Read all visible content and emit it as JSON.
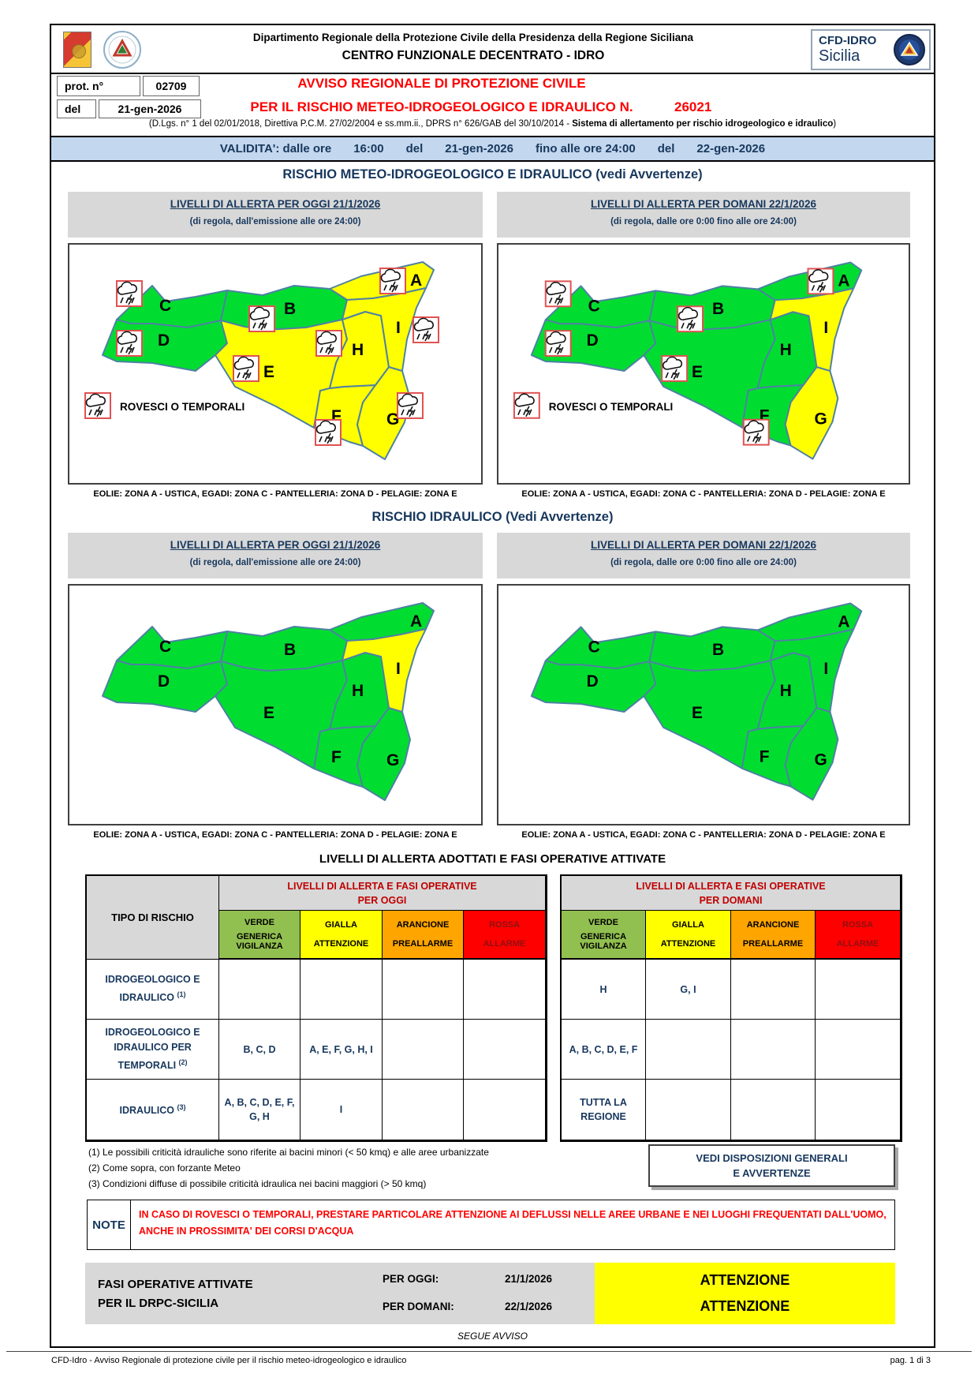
{
  "header": {
    "line1": "Dipartimento Regionale della Protezione Civile della Presidenza della Regione Siciliana",
    "line2": "CENTRO FUNZIONALE DECENTRATO - IDRO",
    "badge": {
      "line1": "CFD-IDRO",
      "line2": "Sicilia"
    }
  },
  "protocol": {
    "prot_label": "prot. n°",
    "prot_value": "02709",
    "del_label": "del",
    "del_value": "21-gen-2026"
  },
  "title": {
    "line1": "AVVISO REGIONALE DI PROTEZIONE CIVILE",
    "line2": "PER IL RISCHIO METEO-IDROGEOLOGICO E IDRAULICO N.",
    "number": "26021",
    "subtitle_pre": "(D.Lgs. n° 1 del 02/01/2018, Direttiva P.C.M. 27/02/2004 e ss.mm.ii., DPRS n° 626/GAB del 30/10/2014 - ",
    "subtitle_bold": "Sistema di allertamento per rischio idrogeologico e idraulico",
    "subtitle_post": ")"
  },
  "validity": {
    "p1": "VALIDITA': dalle ore",
    "p2": "16:00",
    "p3": "del",
    "p4": "21-gen-2026",
    "p5": "fino alle ore 24:00",
    "p6": "del",
    "p7": "22-gen-2026"
  },
  "sections": {
    "meteo_title": "RISCHIO METEO-IDROGEOLOGICO E IDRAULICO (vedi Avvertenze)",
    "idraulico_title": "RISCHIO IDRAULICO (Vedi Avvertenze)"
  },
  "map_headers": {
    "today_title": "LIVELLI DI ALLERTA PER OGGI 21/1/2026",
    "today_sub": "(di regola, dall'emissione alle ore 24:00)",
    "tomorrow_title": "LIVELLI DI ALLERTA PER DOMANI 22/1/2026",
    "tomorrow_sub": "(di regola, dalle ore 0:00 fino alle ore 24:00)"
  },
  "map_caption": "EOLIE: ZONA A - USTICA, EGADI: ZONA C - PANTELLERIA: ZONA D - PELAGIE: ZONA E",
  "legend_label": "ROVESCI O TEMPORALI",
  "colors": {
    "map_green": "#00dd30",
    "map_yellow": "#ffff00",
    "verde": "#92c050",
    "gialla": "#ffff00",
    "arancione": "#ffa500",
    "rossa": "#ff0000",
    "navy": "#17375d",
    "title_red": "#ff0000",
    "table_head_red": "#c00000",
    "validity_bg": "#c3d7ee"
  },
  "maps": {
    "meteo_today": {
      "zones": {
        "A": "yellow",
        "B": "green",
        "C": "green",
        "D": "green",
        "E": "yellow",
        "F": "yellow",
        "G": "yellow",
        "H": "yellow",
        "I": "yellow"
      },
      "icons": [
        "A",
        "B",
        "C",
        "D",
        "E",
        "F",
        "G",
        "H",
        "I"
      ],
      "legend": true
    },
    "meteo_tomorrow": {
      "zones": {
        "A": "green",
        "B": "green",
        "C": "green",
        "D": "green",
        "E": "green",
        "F": "green",
        "G": "yellow",
        "H": "green",
        "I": "yellow"
      },
      "icons": [
        "A",
        "B",
        "C",
        "D",
        "E",
        "F"
      ],
      "legend": true
    },
    "idro_today": {
      "zones": {
        "A": "green",
        "B": "green",
        "C": "green",
        "D": "green",
        "E": "green",
        "F": "green",
        "G": "green",
        "H": "green",
        "I": "yellow"
      },
      "icons": [],
      "legend": false
    },
    "idro_tomorrow": {
      "zones": {
        "A": "green",
        "B": "green",
        "C": "green",
        "D": "green",
        "E": "green",
        "F": "green",
        "G": "green",
        "H": "green",
        "I": "green"
      },
      "icons": [],
      "legend": false
    }
  },
  "alert_table": {
    "title": "LIVELLI DI ALLERTA ADOTTATI E FASI OPERATIVE ATTIVATE",
    "tipo_header": "TIPO DI RISCHIO",
    "today_header_l1": "LIVELLI DI ALLERTA E FASI OPERATIVE",
    "today_header_l2": "PER OGGI",
    "tomorrow_header_l1": "LIVELLI DI ALLERTA E FASI OPERATIVE",
    "tomorrow_header_l2": "PER DOMANI",
    "levels": [
      {
        "name": "VERDE",
        "phase": "GENERICA VIGILANZA"
      },
      {
        "name": "GIALLA",
        "phase": "ATTENZIONE"
      },
      {
        "name": "ARANCIONE",
        "phase": "PREALLARME"
      },
      {
        "name": "ROSSA",
        "phase": "ALLARME"
      }
    ],
    "rows": [
      {
        "tipo": "IDROGEOLOGICO E IDRAULICO",
        "sup": "(1)",
        "today": [
          "",
          "",
          "",
          ""
        ],
        "tomorrow": [
          "H",
          "G, I",
          "",
          ""
        ]
      },
      {
        "tipo": "IDROGEOLOGICO E IDRAULICO PER TEMPORALI",
        "sup": "(2)",
        "today": [
          "B, C, D",
          "A, E, F, G, H, I",
          "",
          ""
        ],
        "tomorrow": [
          "A, B, C, D, E, F",
          "",
          "",
          ""
        ]
      },
      {
        "tipo": "IDRAULICO",
        "sup": "(3)",
        "today": [
          "A, B, C, D, E, F, G, H",
          "I",
          "",
          ""
        ],
        "tomorrow": [
          "TUTTA LA REGIONE",
          "",
          "",
          ""
        ]
      }
    ],
    "footnotes": [
      "(1) Le possibili criticità idrauliche sono riferite ai bacini minori (< 50 kmq) e alle aree urbanizzate",
      "(2) Come sopra, con forzante Meteo",
      "(3) Condizioni diffuse di possibile criticità idraulica nei bacini maggiori (> 50 kmq)"
    ],
    "vedi_line1": "VEDI DISPOSIZIONI GENERALI",
    "vedi_line2": "E AVVERTENZE"
  },
  "note": {
    "label": "NOTE",
    "text": "IN CASO DI ROVESCI O TEMPORALI, PRESTARE PARTICOLARE ATTENZIONE AI DEFLUSSI NELLE AREE URBANE E NEI LUOGHI FREQUENTATI DALL'UOMO, ANCHE IN PROSSIMITA' DEI CORSI D'ACQUA"
  },
  "fasi": {
    "label_l1": "FASI OPERATIVE ATTIVATE",
    "label_l2": "PER IL DRPC-SICILIA",
    "today_label": "PER OGGI:",
    "today_date": "21/1/2026",
    "tomorrow_label": "PER DOMANI:",
    "tomorrow_date": "22/1/2026",
    "today_phase": "ATTENZIONE",
    "tomorrow_phase": "ATTENZIONE"
  },
  "footer": {
    "segue": "SEGUE AVVISO",
    "left": "CFD-Idro - Avviso Regionale di protezione civile per il rischio meteo-idrogeologico e idraulico",
    "right": "pag. 1 di 3"
  }
}
